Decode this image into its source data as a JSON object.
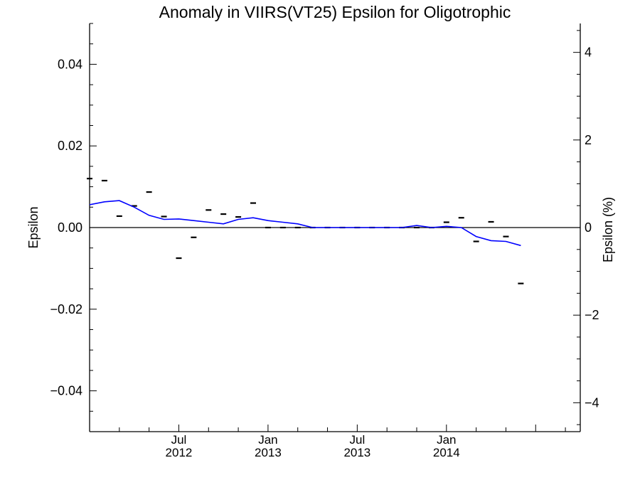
{
  "chart_data": {
    "type": "line",
    "title": "Anomaly in VIIRS(VT25) Epsilon for Oligotrophic",
    "ylabel": "Epsilon",
    "ylabel_right": "Epsilon (%)",
    "xlim": [
      "2012-01",
      "2014-10"
    ],
    "ylim": [
      -0.05,
      0.05
    ],
    "ylim_right": [
      -4.66,
      4.66
    ],
    "x_major_ticks": [
      {
        "month": "2012-07",
        "line1": "Jul",
        "line2": "2012"
      },
      {
        "month": "2013-01",
        "line1": "Jan",
        "line2": "2013"
      },
      {
        "month": "2013-07",
        "line1": "Jul",
        "line2": "2013"
      },
      {
        "month": "2014-01",
        "line1": "Jan",
        "line2": "2014"
      }
    ],
    "y_ticks": [
      {
        "value": 0.04,
        "label": "0.04"
      },
      {
        "value": 0.02,
        "label": "0.02"
      },
      {
        "value": 0.0,
        "label": "0.00"
      },
      {
        "value": -0.02,
        "label": "−0.02"
      },
      {
        "value": -0.04,
        "label": "−0.04"
      }
    ],
    "y_right_ticks": [
      {
        "value": 4,
        "label": "4"
      },
      {
        "value": 2,
        "label": "2"
      },
      {
        "value": 0,
        "label": "0"
      },
      {
        "value": -2,
        "label": "−2"
      },
      {
        "value": -4,
        "label": "−4"
      }
    ],
    "reference_line": 0,
    "series": [
      {
        "style": "dash",
        "color": "#000000",
        "points": [
          {
            "x": "2012-01",
            "y": 0.012
          },
          {
            "x": "2012-02",
            "y": 0.0115
          },
          {
            "x": "2012-03",
            "y": 0.0028
          },
          {
            "x": "2012-04",
            "y": 0.0053
          },
          {
            "x": "2012-05",
            "y": 0.0087
          },
          {
            "x": "2012-06",
            "y": 0.0027
          },
          {
            "x": "2012-07",
            "y": -0.0075
          },
          {
            "x": "2012-08",
            "y": -0.0024
          },
          {
            "x": "2012-09",
            "y": 0.0043
          },
          {
            "x": "2012-10",
            "y": 0.0033
          },
          {
            "x": "2012-11",
            "y": 0.0026
          },
          {
            "x": "2012-12",
            "y": 0.006
          },
          {
            "x": "2013-01",
            "y": 0.0
          },
          {
            "x": "2013-02",
            "y": 0.0
          },
          {
            "x": "2013-03",
            "y": 0.0
          },
          {
            "x": "2013-04",
            "y": 0.0
          },
          {
            "x": "2013-05",
            "y": 0.0
          },
          {
            "x": "2013-06",
            "y": 0.0
          },
          {
            "x": "2013-07",
            "y": 0.0
          },
          {
            "x": "2013-08",
            "y": 0.0
          },
          {
            "x": "2013-09",
            "y": 0.0
          },
          {
            "x": "2013-10",
            "y": 0.0
          },
          {
            "x": "2013-11",
            "y": 0.0
          },
          {
            "x": "2013-12",
            "y": 0.0
          },
          {
            "x": "2014-01",
            "y": 0.0013
          },
          {
            "x": "2014-02",
            "y": 0.0024
          },
          {
            "x": "2014-03",
            "y": -0.0034
          },
          {
            "x": "2014-04",
            "y": 0.0014
          },
          {
            "x": "2014-05",
            "y": -0.0022
          },
          {
            "x": "2014-06",
            "y": -0.0137
          }
        ]
      },
      {
        "style": "line",
        "color": "#0000ff",
        "points": [
          {
            "x": "2012-01",
            "y": 0.0056
          },
          {
            "x": "2012-02",
            "y": 0.0063
          },
          {
            "x": "2012-03",
            "y": 0.0066
          },
          {
            "x": "2012-04",
            "y": 0.005
          },
          {
            "x": "2012-05",
            "y": 0.003
          },
          {
            "x": "2012-06",
            "y": 0.002
          },
          {
            "x": "2012-07",
            "y": 0.0021
          },
          {
            "x": "2012-08",
            "y": 0.0017
          },
          {
            "x": "2012-09",
            "y": 0.0013
          },
          {
            "x": "2012-10",
            "y": 0.0009
          },
          {
            "x": "2012-11",
            "y": 0.002
          },
          {
            "x": "2012-12",
            "y": 0.0024
          },
          {
            "x": "2013-01",
            "y": 0.0017
          },
          {
            "x": "2013-02",
            "y": 0.0013
          },
          {
            "x": "2013-03",
            "y": 0.0009
          },
          {
            "x": "2013-04",
            "y": 0.0
          },
          {
            "x": "2013-05",
            "y": 0.0
          },
          {
            "x": "2013-06",
            "y": 0.0
          },
          {
            "x": "2013-07",
            "y": 0.0
          },
          {
            "x": "2013-08",
            "y": 0.0
          },
          {
            "x": "2013-09",
            "y": 0.0
          },
          {
            "x": "2013-10",
            "y": 0.0
          },
          {
            "x": "2013-11",
            "y": 0.0005
          },
          {
            "x": "2013-12",
            "y": 0.0
          },
          {
            "x": "2014-01",
            "y": 0.0003
          },
          {
            "x": "2014-02",
            "y": 0.0
          },
          {
            "x": "2014-03",
            "y": -0.0022
          },
          {
            "x": "2014-04",
            "y": -0.0032
          },
          {
            "x": "2014-05",
            "y": -0.0034
          },
          {
            "x": "2014-06",
            "y": -0.0044
          }
        ]
      }
    ]
  }
}
